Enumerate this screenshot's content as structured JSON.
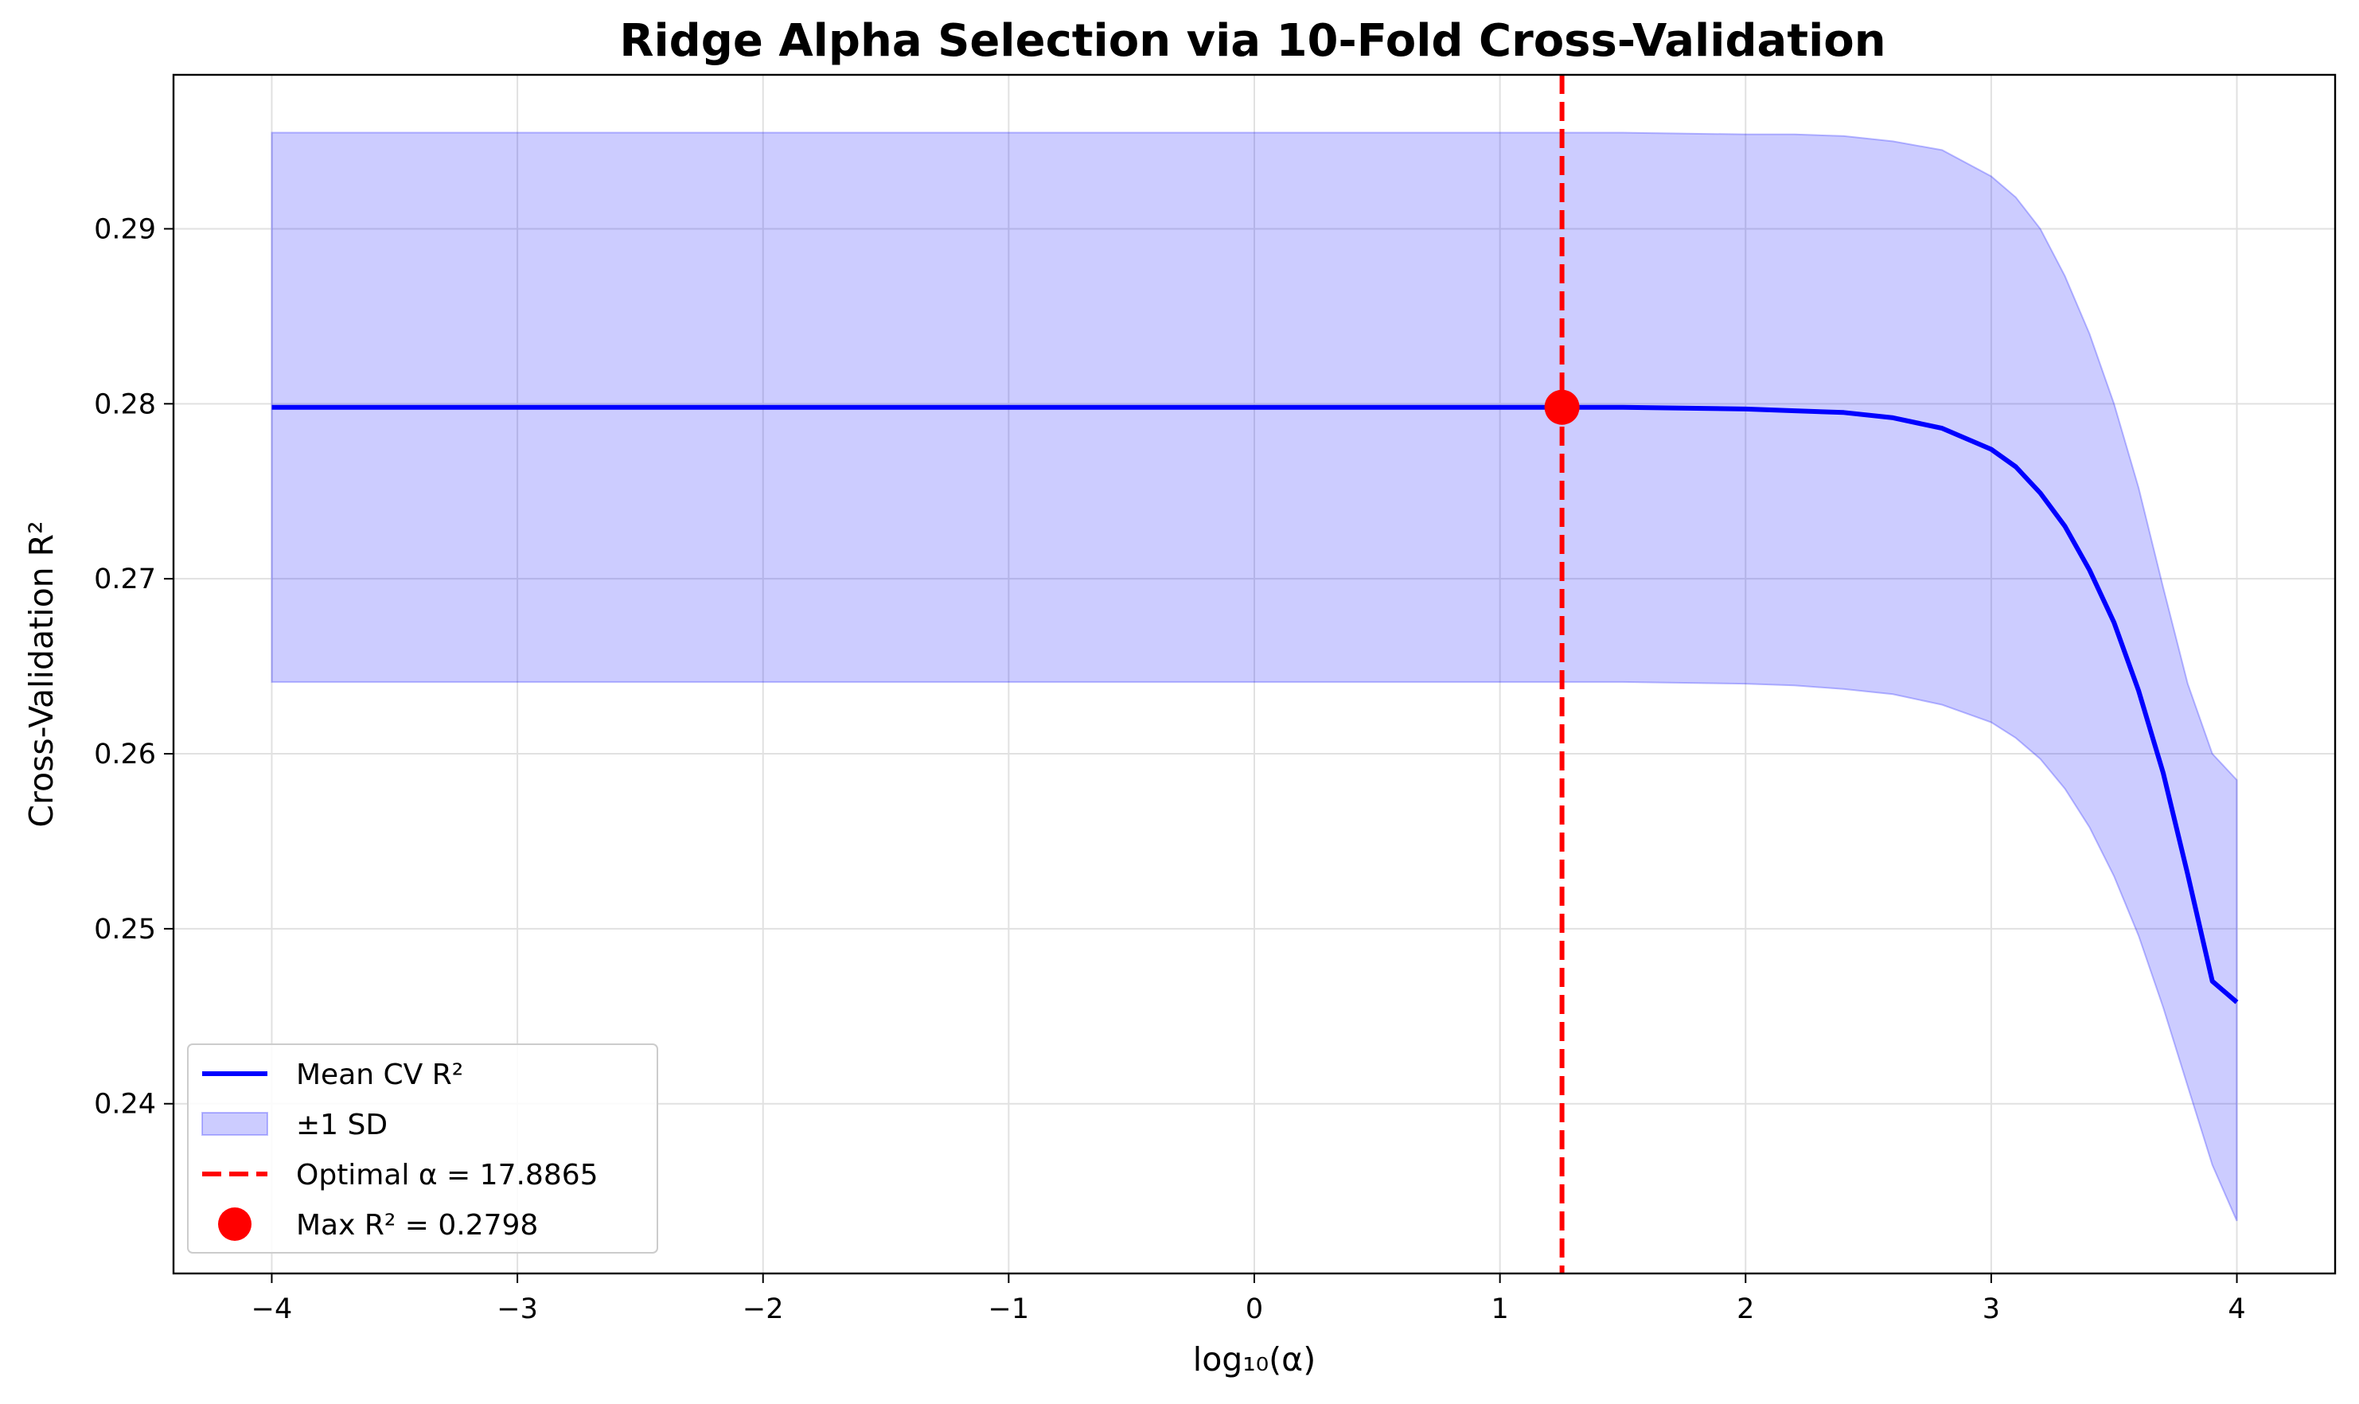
{
  "chart_data": {
    "type": "line",
    "title": "Ridge Alpha Selection via 10-Fold Cross-Validation",
    "xlabel": "log₁₀(α)",
    "ylabel": "Cross-Validation R²",
    "xlim": [
      -4.4,
      4.4
    ],
    "ylim": [
      0.2303,
      0.2988
    ],
    "x_ticks": [
      {
        "value": -4,
        "label": "−4"
      },
      {
        "value": -3,
        "label": "−3"
      },
      {
        "value": -2,
        "label": "−2"
      },
      {
        "value": -1,
        "label": "−1"
      },
      {
        "value": 0,
        "label": "0"
      },
      {
        "value": 1,
        "label": "1"
      },
      {
        "value": 2,
        "label": "2"
      },
      {
        "value": 3,
        "label": "3"
      },
      {
        "value": 4,
        "label": "4"
      }
    ],
    "y_ticks": [
      {
        "value": 0.24,
        "label": "0.24"
      },
      {
        "value": 0.25,
        "label": "0.25"
      },
      {
        "value": 0.26,
        "label": "0.26"
      },
      {
        "value": 0.27,
        "label": "0.27"
      },
      {
        "value": 0.28,
        "label": "0.28"
      },
      {
        "value": 0.29,
        "label": "0.29"
      }
    ],
    "grid": true,
    "legend_position": "lower-left",
    "series": [
      {
        "name": "Mean CV R²",
        "kind": "line",
        "color": "#0000ff",
        "x": [
          -4.0,
          -3.0,
          -2.0,
          -1.0,
          0.0,
          1.0,
          1.25,
          1.5,
          2.0,
          2.2,
          2.4,
          2.6,
          2.8,
          3.0,
          3.1,
          3.2,
          3.3,
          3.4,
          3.5,
          3.6,
          3.7,
          3.8,
          3.9,
          4.0
        ],
        "y": [
          0.2798,
          0.2798,
          0.2798,
          0.2798,
          0.2798,
          0.2798,
          0.2798,
          0.2798,
          0.2797,
          0.2796,
          0.2795,
          0.2792,
          0.2786,
          0.2774,
          0.2764,
          0.2749,
          0.273,
          0.2705,
          0.2675,
          0.2636,
          0.2589,
          0.2531,
          0.247,
          0.2458
        ]
      },
      {
        "name": "±1 SD",
        "kind": "band",
        "color": "#0000ff",
        "opacity": 0.2,
        "x": [
          -4.0,
          -3.0,
          -2.0,
          -1.0,
          0.0,
          1.0,
          1.25,
          1.5,
          2.0,
          2.2,
          2.4,
          2.6,
          2.8,
          3.0,
          3.1,
          3.2,
          3.3,
          3.4,
          3.5,
          3.6,
          3.7,
          3.8,
          3.9,
          4.0
        ],
        "upper": [
          0.2955,
          0.2955,
          0.2955,
          0.2955,
          0.2955,
          0.2955,
          0.2955,
          0.2955,
          0.2954,
          0.2954,
          0.2953,
          0.295,
          0.2945,
          0.293,
          0.2918,
          0.29,
          0.2873,
          0.284,
          0.28,
          0.2752,
          0.2695,
          0.264,
          0.26,
          0.2585
        ],
        "lower": [
          0.2641,
          0.2641,
          0.2641,
          0.2641,
          0.2641,
          0.2641,
          0.2641,
          0.2641,
          0.264,
          0.2639,
          0.2637,
          0.2634,
          0.2628,
          0.2618,
          0.2609,
          0.2597,
          0.258,
          0.2558,
          0.253,
          0.2496,
          0.2455,
          0.241,
          0.2365,
          0.2333
        ]
      },
      {
        "name": "Optimal α = 17.8865",
        "kind": "vline",
        "color": "#ff0000",
        "x": 1.2526
      },
      {
        "name": "Max R² = 0.2798",
        "kind": "point",
        "color": "#ff0000",
        "x": 1.2526,
        "y": 0.2798
      }
    ]
  }
}
